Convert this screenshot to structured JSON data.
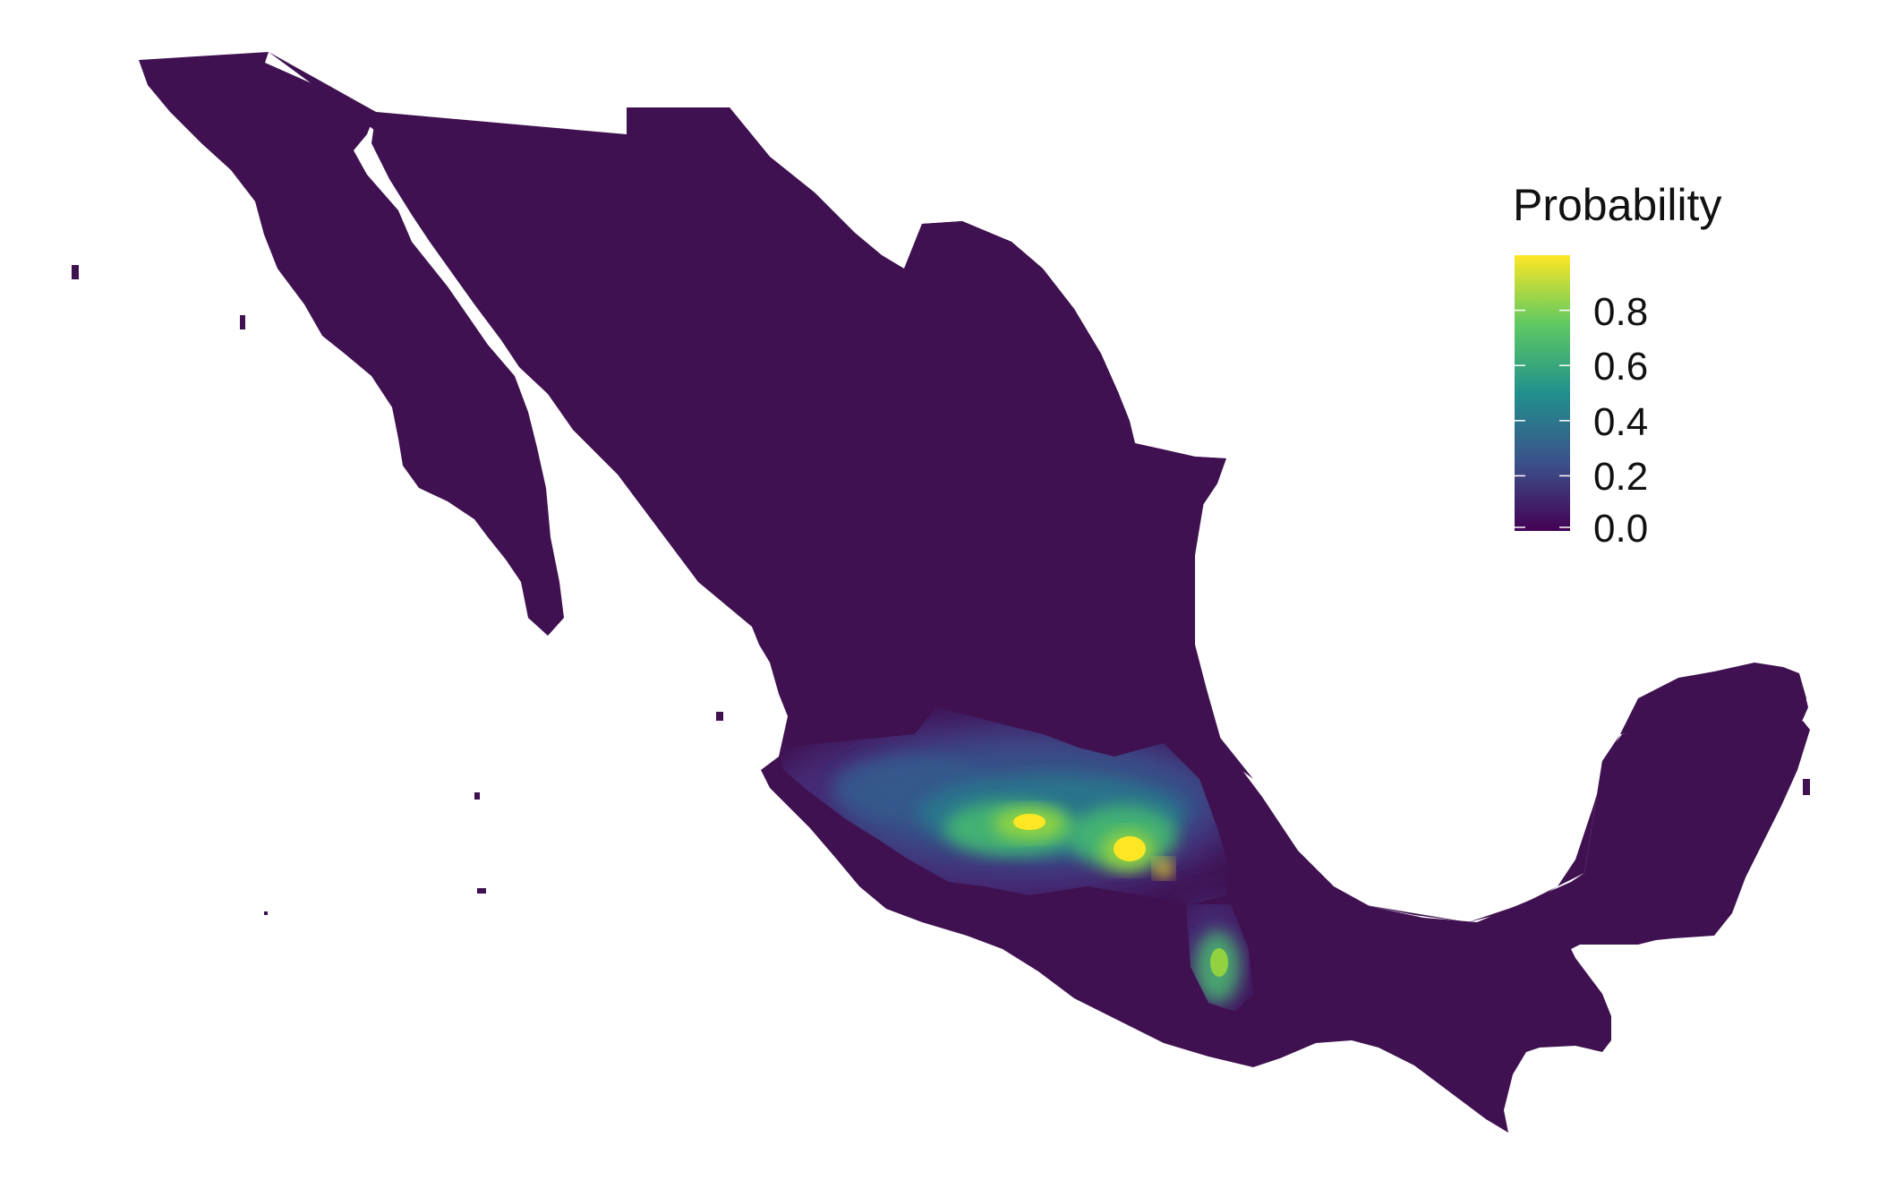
{
  "legend": {
    "title": "Probability",
    "ticks": [
      "0.8",
      "0.6",
      "0.4",
      "0.2",
      "0.0"
    ],
    "tick_values": [
      0.8,
      0.6,
      0.4,
      0.2,
      0.0
    ],
    "scale": "viridis",
    "colors": [
      "#440154",
      "#3b528b",
      "#21908c",
      "#5ec962",
      "#fde725"
    ]
  },
  "map": {
    "land_color": "#3f1150",
    "background": "#ffffff",
    "hotspot_colors": [
      "#46337e",
      "#365c8d",
      "#277f8e",
      "#1fa187",
      "#4ac16d",
      "#a0da39",
      "#fde725"
    ]
  }
}
